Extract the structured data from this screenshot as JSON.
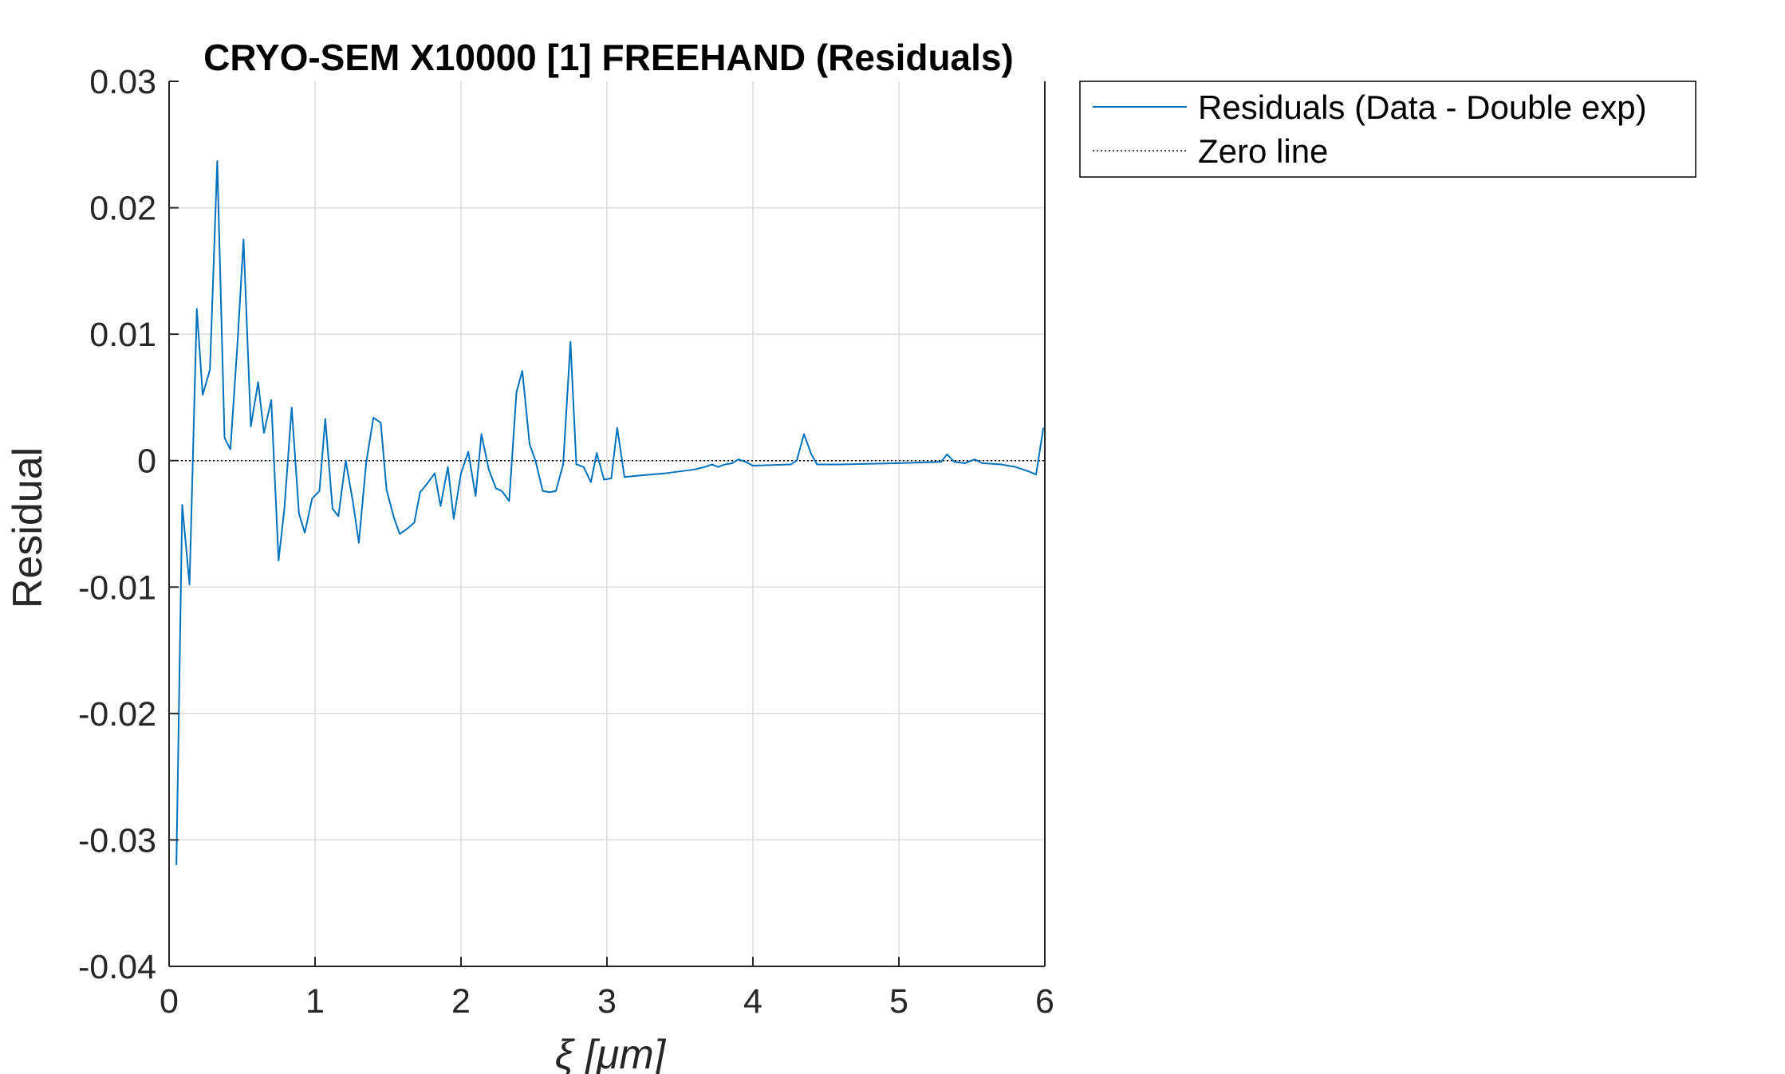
{
  "chart_data": {
    "type": "line",
    "title": "CRYO-SEM X10000 [1] FREEHAND (Residuals)",
    "xlabel": "ξ  [μm]",
    "ylabel": "Residual",
    "xlim": [
      0,
      6
    ],
    "ylim": [
      -0.04,
      0.03
    ],
    "x_ticks": [
      0,
      1,
      2,
      3,
      4,
      5,
      6
    ],
    "x_tick_labels": [
      "0",
      "1",
      "2",
      "3",
      "4",
      "5",
      "6"
    ],
    "y_ticks": [
      -0.04,
      -0.03,
      -0.02,
      -0.01,
      0,
      0.01,
      0.02,
      0.03
    ],
    "y_tick_labels": [
      "-0.04",
      "-0.03",
      "-0.02",
      "-0.01",
      "0",
      "0.01",
      "0.02",
      "0.03"
    ],
    "grid": true,
    "legend_position": "outside-top-right",
    "series": [
      {
        "name": "Residuals (Data - Double exp)",
        "color": "#0072BD",
        "style": "solid",
        "x": [
          0.05,
          0.09,
          0.14,
          0.19,
          0.23,
          0.28,
          0.33,
          0.38,
          0.42,
          0.47,
          0.51,
          0.56,
          0.61,
          0.65,
          0.7,
          0.75,
          0.79,
          0.84,
          0.89,
          0.93,
          0.98,
          1.03,
          1.07,
          1.12,
          1.16,
          1.21,
          1.26,
          1.3,
          1.35,
          1.4,
          1.45,
          1.49,
          1.54,
          1.58,
          1.63,
          1.68,
          1.72,
          1.77,
          1.82,
          1.86,
          1.91,
          1.95,
          2.0,
          2.05,
          2.1,
          2.14,
          2.19,
          2.24,
          2.28,
          2.33,
          2.38,
          2.42,
          2.47,
          2.51,
          2.56,
          2.61,
          2.65,
          2.7,
          2.75,
          2.79,
          2.84,
          2.89,
          2.93,
          2.98,
          3.03,
          3.07,
          3.12,
          3.2,
          3.4,
          3.6,
          3.67,
          3.72,
          3.76,
          3.81,
          3.86,
          3.9,
          3.95,
          4.0,
          4.26,
          4.3,
          4.35,
          4.4,
          4.44,
          4.6,
          5.0,
          5.29,
          5.33,
          5.38,
          5.45,
          5.52,
          5.57,
          5.7,
          5.8,
          5.9,
          5.94,
          5.99
        ],
        "y": [
          -0.032,
          -0.0035,
          -0.0098,
          0.012,
          0.0052,
          0.0072,
          0.0237,
          0.0018,
          0.0009,
          0.0095,
          0.0175,
          0.0027,
          0.0062,
          0.0022,
          0.0048,
          -0.0079,
          -0.0038,
          0.0042,
          -0.0042,
          -0.0057,
          -0.003,
          -0.0024,
          0.0033,
          -0.0038,
          -0.0044,
          0.0,
          -0.0033,
          -0.0065,
          -0.0002,
          0.0034,
          0.003,
          -0.0023,
          -0.0045,
          -0.0058,
          -0.0054,
          -0.0049,
          -0.0025,
          -0.0018,
          -0.001,
          -0.0036,
          -0.0005,
          -0.0046,
          -0.001,
          0.0007,
          -0.0028,
          0.0021,
          -0.0007,
          -0.0022,
          -0.0024,
          -0.0032,
          0.0054,
          0.0071,
          0.0013,
          0.0,
          -0.0024,
          -0.0025,
          -0.0024,
          -0.0003,
          0.0094,
          -0.0003,
          -0.0005,
          -0.0017,
          0.0006,
          -0.0015,
          -0.0014,
          0.0026,
          -0.0013,
          -0.0012,
          -0.001,
          -0.0007,
          -0.0005,
          -0.0003,
          -0.0005,
          -0.0003,
          -0.0002,
          0.0001,
          -0.0001,
          -0.0004,
          -0.0003,
          0.0,
          0.0021,
          0.0005,
          -0.0003,
          -0.0003,
          -0.0002,
          -0.0001,
          0.0005,
          -0.0001,
          -0.0002,
          0.0001,
          -0.0002,
          -0.0003,
          -0.0005,
          -0.0009,
          -0.0011,
          0.0026
        ]
      },
      {
        "name": "Zero line",
        "color": "#000000",
        "style": "dotted",
        "x": [
          0,
          6
        ],
        "y": [
          0,
          0
        ]
      }
    ]
  }
}
